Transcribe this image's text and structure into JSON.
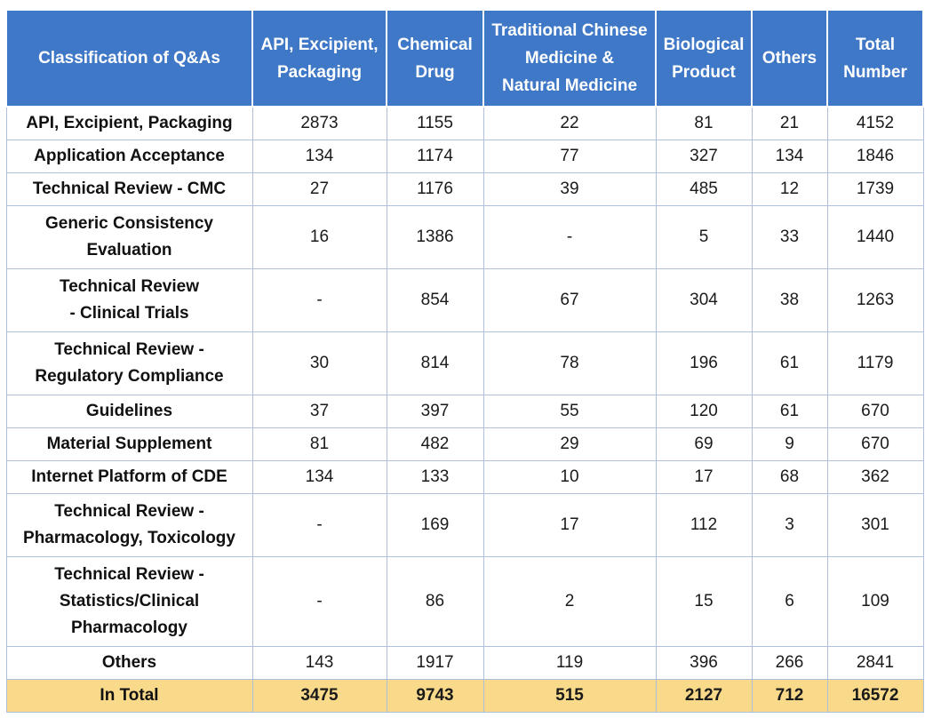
{
  "chart_data": {
    "type": "table",
    "headers": [
      "Classification of Q&As",
      "API, Excipient, Packaging",
      "Chemical Drug",
      "Traditional Chinese Medicine & Natural Medicine",
      "Biological Product",
      "Others",
      "Total Number"
    ],
    "rows": [
      {
        "label": "API, Excipient, Packaging",
        "values": [
          "2873",
          "1155",
          "22",
          "81",
          "21",
          "4152"
        ]
      },
      {
        "label": "Application Acceptance",
        "values": [
          "134",
          "1174",
          "77",
          "327",
          "134",
          "1846"
        ]
      },
      {
        "label": "Technical Review - CMC",
        "values": [
          "27",
          "1176",
          "39",
          "485",
          "12",
          "1739"
        ]
      },
      {
        "label": "Generic Consistency Evaluation",
        "values": [
          "16",
          "1386",
          "-",
          "5",
          "33",
          "1440"
        ]
      },
      {
        "label": "Technical Review - Clinical Trials",
        "values": [
          "-",
          "854",
          "67",
          "304",
          "38",
          "1263"
        ]
      },
      {
        "label": "Technical Review - Regulatory Compliance",
        "values": [
          "30",
          "814",
          "78",
          "196",
          "61",
          "1179"
        ]
      },
      {
        "label": "Guidelines",
        "values": [
          "37",
          "397",
          "55",
          "120",
          "61",
          "670"
        ]
      },
      {
        "label": "Material Supplement",
        "values": [
          "81",
          "482",
          "29",
          "69",
          "9",
          "670"
        ]
      },
      {
        "label": "Internet Platform of CDE",
        "values": [
          "134",
          "133",
          "10",
          "17",
          "68",
          "362"
        ]
      },
      {
        "label": "Technical Review - Pharmacology, Toxicology",
        "values": [
          "-",
          "169",
          "17",
          "112",
          "3",
          "301"
        ]
      },
      {
        "label": "Technical Review - Statistics/Clinical Pharmacology",
        "values": [
          "-",
          "86",
          "2",
          "15",
          "6",
          "109"
        ]
      },
      {
        "label": "Others",
        "values": [
          "143",
          "1917",
          "119",
          "396",
          "266",
          "2841"
        ]
      }
    ],
    "total": {
      "label": "In Total",
      "values": [
        "3475",
        "9743",
        "515",
        "2127",
        "712",
        "16572"
      ]
    },
    "colors": {
      "header_bg": "#3f78c6",
      "header_text": "#ffffff",
      "total_bg": "#f9d98a",
      "grid": "#aebfdc"
    }
  }
}
